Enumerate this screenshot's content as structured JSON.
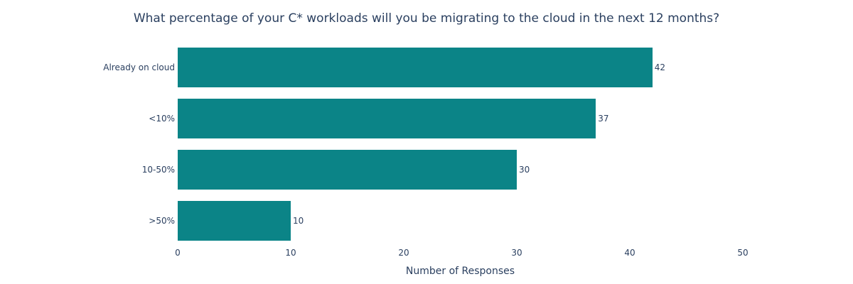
{
  "chart_data": {
    "type": "bar",
    "orientation": "horizontal",
    "title": "What percentage of your C* workloads will you be migrating to the cloud in the next 12 months?",
    "categories": [
      "Already on cloud",
      "<10%",
      "10-50%",
      ">50%"
    ],
    "values": [
      42,
      37,
      30,
      10
    ],
    "xlabel": "Number of Responses",
    "ylabel": "",
    "xlim": [
      0,
      50
    ],
    "xticks": [
      0,
      10,
      20,
      30,
      40,
      50
    ],
    "grid": false,
    "legend": "none",
    "value_labels": "outside-end",
    "bar_color": "#0b8487",
    "text_color": "#2a3f5f",
    "background_color": "#ffffff"
  }
}
